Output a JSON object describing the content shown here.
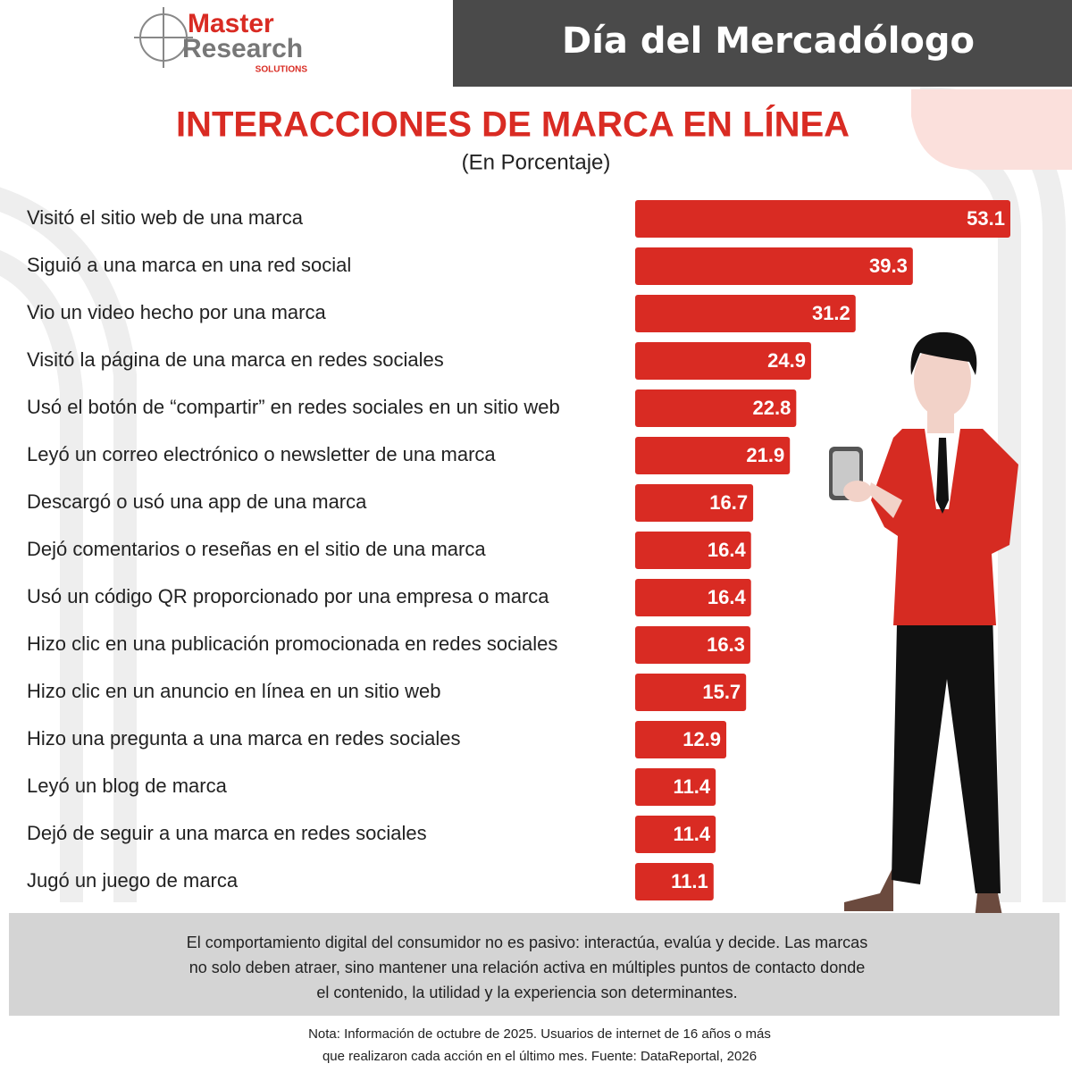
{
  "logo": {
    "line1": "Master",
    "line2": "Research",
    "line3": "SOLUTIONS"
  },
  "header": {
    "title": "Día del Mercadólogo"
  },
  "chart_data": {
    "type": "hbar",
    "title": "INTERACCIONES DE MARCA EN LÍNEA",
    "subtitle": "(En Porcentaje)",
    "categories": [
      "Visitó el sitio web de una marca",
      "Siguió a una marca en una red social",
      "Vio un video hecho por una marca",
      "Visitó la página de una marca en redes sociales",
      "Usó el botón de “compartir” en redes sociales en un sitio web",
      "Leyó un correo electrónico o newsletter de una marca",
      "Descargó o usó una app de una marca",
      "Dejó comentarios o reseñas en el sitio de una marca",
      "Usó un código QR proporcionado por una empresa o marca",
      "Hizo clic en una publicación promocionada en redes sociales",
      "Hizo clic en un anuncio en línea en un sitio web",
      "Hizo una pregunta a una marca en redes sociales",
      "Leyó un blog de marca",
      "Dejó de seguir a una marca en redes sociales",
      "Jugó un juego de marca"
    ],
    "values": [
      53.1,
      39.3,
      31.2,
      24.9,
      22.8,
      21.9,
      16.7,
      16.4,
      16.4,
      16.3,
      15.7,
      12.9,
      11.4,
      11.4,
      11.1
    ],
    "color": "#d92b23"
  },
  "commentary": [
    "El comportamiento digital del consumidor no es pasivo: interactúa, evalúa y decide. Las marcas",
    "no solo deben atraer, sino mantener una relación activa en múltiples puntos de contacto donde",
    "el contenido, la utilidad y la experiencia son determinantes."
  ],
  "note": [
    "Nota: Información de octubre de 2025. Usuarios de internet de 16 años o más",
    "que realizaron cada acción en el último mes. Fuente: DataReportal, 2026"
  ]
}
